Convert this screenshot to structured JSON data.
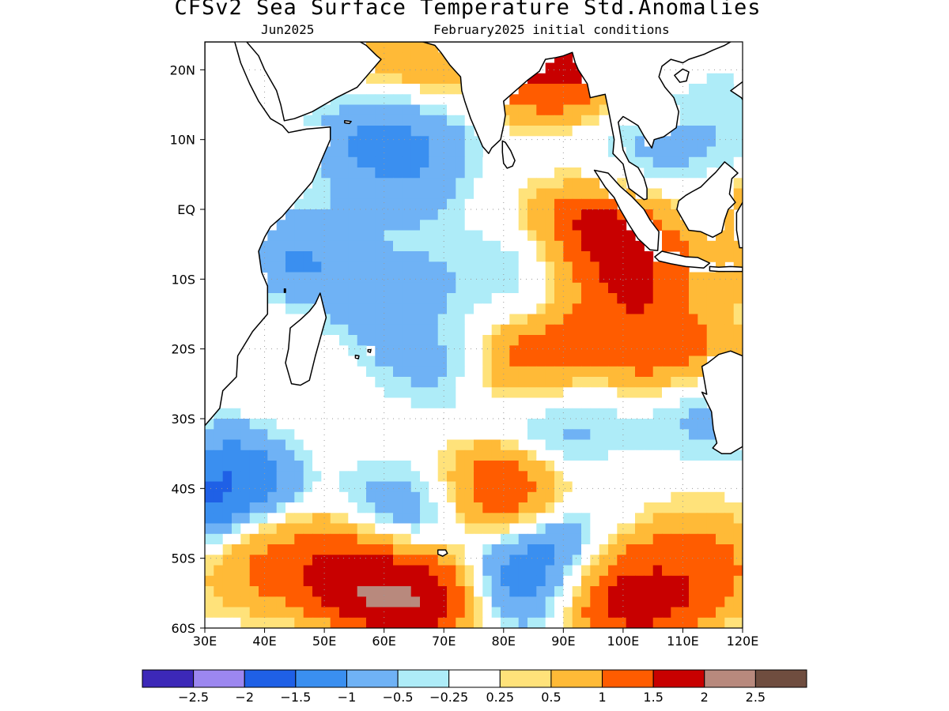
{
  "title": "CFSv2 Sea Surface Temperature Std.Anomalies",
  "subtitle_left": "Jun2025",
  "subtitle_right": "February2025 initial conditions",
  "lat_ticks": [
    "20N",
    "10N",
    "EQ",
    "10S",
    "20S",
    "30S",
    "40S",
    "50S",
    "60S"
  ],
  "lon_ticks": [
    "30E",
    "40E",
    "50E",
    "60E",
    "70E",
    "80E",
    "90E",
    "100E",
    "110E",
    "120E"
  ],
  "map_extent": {
    "lon": [
      30,
      120
    ],
    "lat": [
      -60,
      24
    ]
  },
  "colorbar": {
    "colors": [
      "#3c28b8",
      "#9c87f0",
      "#1f60e6",
      "#3a8ff0",
      "#6fb2f5",
      "#aeecf8",
      "#ffffff",
      "#ffe27a",
      "#ffba37",
      "#ff5c00",
      "#c80000",
      "#b8897d",
      "#6f4d3f"
    ],
    "labels": [
      "−2.5",
      "−2",
      "−1.5",
      "−1",
      "−0.5",
      "−0.25",
      "0.25",
      "0.5",
      "1",
      "1.5",
      "2",
      "2.5"
    ]
  },
  "chart_data": {
    "type": "heatmap",
    "title": "CFSv2 Sea Surface Temperature Std.Anomalies",
    "subtitle": "Jun2025   February2025 initial conditions",
    "xlim": [
      30,
      120
    ],
    "ylim": [
      -60,
      24
    ],
    "x_ticks": [
      "30E",
      "40E",
      "50E",
      "60E",
      "70E",
      "80E",
      "90E",
      "100E",
      "110E",
      "120E"
    ],
    "y_ticks": [
      "20N",
      "10N",
      "EQ",
      "10S",
      "20S",
      "30S",
      "40S",
      "50S",
      "60S"
    ],
    "grid": true,
    "levels": [
      -2.5,
      -2,
      -1.5,
      -1,
      -0.5,
      -0.25,
      0.25,
      0.5,
      1,
      1.5,
      2,
      2.5
    ],
    "anomaly_features": [
      {
        "lon": 63,
        "lat": 10,
        "value": -1.3
      },
      {
        "lon": 60,
        "lat": 3,
        "value": -1.0
      },
      {
        "lon": 48,
        "lat": -5,
        "value": -1.2
      },
      {
        "lon": 62,
        "lat": -12,
        "value": -1.0
      },
      {
        "lon": 66,
        "lat": -18,
        "value": -0.8
      },
      {
        "lon": 86,
        "lat": -10,
        "value": -0.6
      },
      {
        "lon": 96,
        "lat": -5,
        "value": 2.0
      },
      {
        "lon": 96,
        "lat": -10,
        "value": 2.5
      },
      {
        "lon": 105,
        "lat": -22,
        "value": 2.0
      },
      {
        "lon": 98,
        "lat": -16,
        "value": 1.7
      },
      {
        "lon": 92,
        "lat": -28,
        "value": -1.2
      },
      {
        "lon": 110,
        "lat": -30,
        "value": -0.8
      },
      {
        "lon": 33,
        "lat": -41,
        "value": -2.5
      },
      {
        "lon": 65,
        "lat": -54,
        "value": 2.6
      },
      {
        "lon": 55,
        "lat": -52,
        "value": 2.2
      },
      {
        "lon": 40,
        "lat": -50,
        "value": 1.6
      },
      {
        "lon": 85,
        "lat": -51,
        "value": -2.0
      },
      {
        "lon": 110,
        "lat": -52,
        "value": 2.1
      },
      {
        "lon": 100,
        "lat": -55,
        "value": 2.0
      },
      {
        "lon": 78,
        "lat": -41,
        "value": 2.0
      },
      {
        "lon": 66,
        "lat": -42,
        "value": -1.2
      },
      {
        "lon": 88,
        "lat": 20,
        "value": 2.2
      },
      {
        "lon": 67,
        "lat": 24,
        "value": 1.0
      },
      {
        "lon": 88,
        "lat": -23,
        "value": 1.8
      },
      {
        "lon": 118,
        "lat": -5,
        "value": 1.5
      },
      {
        "lon": 112,
        "lat": 12,
        "value": -0.8
      }
    ]
  }
}
